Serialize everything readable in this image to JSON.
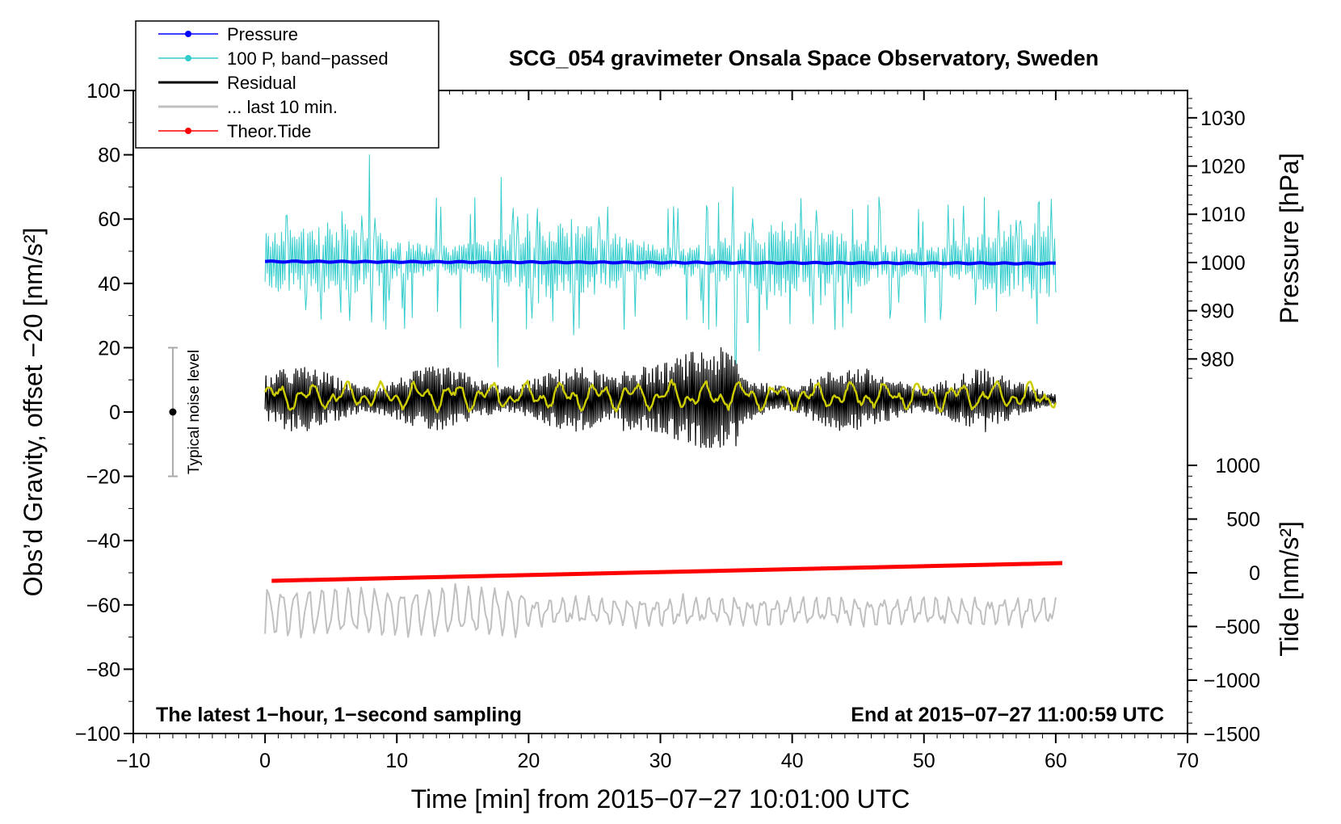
{
  "chart_data": {
    "type": "line",
    "title": "SCG_054 gravimeter Onsala Space Observatory, Sweden",
    "xlabel": "Time [min] from 2015−07−27 10:01:00 UTC",
    "ylabel": "Obs’d Gravity, offset −20 [nm/s²]",
    "xlim": [
      -10,
      70
    ],
    "ylim": [
      -100,
      100
    ],
    "x_ticks": [
      -10,
      0,
      10,
      20,
      30,
      40,
      50,
      60,
      70
    ],
    "x_tick_labels": [
      "−10",
      "0",
      "10",
      "20",
      "30",
      "40",
      "50",
      "60",
      "70"
    ],
    "y_ticks": [
      100,
      80,
      60,
      40,
      20,
      0,
      -20,
      -40,
      -60,
      -80,
      -100
    ],
    "y_tick_labels": [
      "100",
      "80",
      "60",
      "40",
      "20",
      "0",
      "−20",
      "−40",
      "−60",
      "−80",
      "−100"
    ],
    "right_axis_pressure": {
      "label": "Pressure [hPa]",
      "ticks": [
        1030,
        1020,
        1010,
        1000,
        990,
        980
      ],
      "tick_labels": [
        "1030",
        "1020",
        "1010",
        "1000",
        "990",
        "980"
      ],
      "left_axis_value_at_1000": 46.5,
      "left_axis_units_per_hpa": 1.5
    },
    "right_axis_tide": {
      "label": "Tide [nm/s²]",
      "ticks": [
        1000,
        500,
        0,
        -500,
        -1000,
        -1500
      ],
      "tick_labels": [
        "1000",
        "500",
        "0",
        "−500",
        "−1000",
        "−1500"
      ],
      "left_axis_value_at_0": -50,
      "left_axis_units_per_500": 16.7
    },
    "legend": {
      "position": "top-left",
      "entries": [
        {
          "label": "Pressure",
          "color": "#0000ff",
          "marker": "dot"
        },
        {
          "label": "100 P, band−passed",
          "color": "#33cccc",
          "marker": "dot"
        },
        {
          "label": "Residual",
          "color": "#000000",
          "marker": "none"
        },
        {
          "label": "... last 10 min.",
          "color": "#c0c0c0",
          "marker": "none"
        },
        {
          "label": "Theor.Tide",
          "color": "#ff0000",
          "marker": "dot"
        }
      ]
    },
    "series": [
      {
        "name": "Pressure",
        "color": "#0000ff",
        "x_range": [
          0,
          60
        ],
        "start": 46.8,
        "end": 46.2
      },
      {
        "name": "100 P, band−passed",
        "color": "#33cccc",
        "x_range": [
          0,
          60
        ],
        "center": 47,
        "typical_range": [
          38,
          62
        ],
        "spikes": [
          {
            "x": 7.9,
            "y": 80
          },
          {
            "x": 8.1,
            "y": 28
          },
          {
            "x": 17.9,
            "y": 73
          },
          {
            "x": 17.7,
            "y": 14
          },
          {
            "x": 23.4,
            "y": 24
          },
          {
            "x": 35.5,
            "y": 70
          },
          {
            "x": 35.7,
            "y": 15
          },
          {
            "x": 37.5,
            "y": 19
          }
        ]
      },
      {
        "name": "Residual",
        "color": "#000000",
        "x_range": [
          0,
          60
        ],
        "center": 4,
        "typical_range": [
          -8,
          18
        ],
        "extremes": [
          -11,
          21
        ]
      },
      {
        "name": "Residual smoothed",
        "color": "#cccc00",
        "x_range": [
          0,
          60
        ],
        "center": 5,
        "typical_range": [
          0,
          10
        ]
      },
      {
        "name": "... last 10 min.",
        "color": "#c0c0c0",
        "x_range": [
          0,
          60
        ],
        "center": -62,
        "typical_range": [
          -69,
          -53
        ]
      },
      {
        "name": "Theor.Tide",
        "color": "#ff0000",
        "x_range": [
          0.5,
          60.5
        ],
        "start": -52.5,
        "end": -47
      }
    ],
    "noise_bar": {
      "label": "Typical noise level",
      "x": -7,
      "center": 0,
      "low": -20,
      "high": 20
    },
    "annotations": {
      "left": "The latest 1−hour, 1−second sampling",
      "right": "End at 2015−07−27 11:00:59 UTC"
    }
  }
}
